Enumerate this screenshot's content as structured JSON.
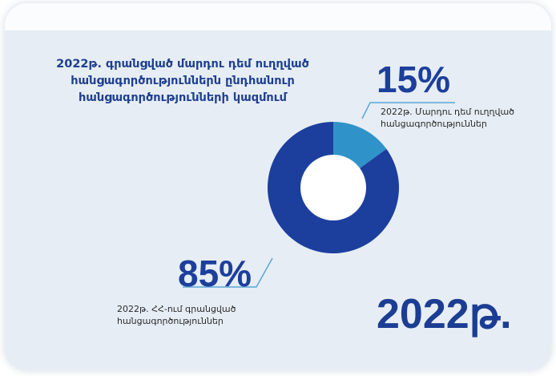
{
  "chart_data": {
    "type": "pie",
    "title": "2022թ. գրանցված մարդու դեմ ուղղված հանցագործություններն ընդհանուր հանցագործությունների կազմում",
    "slices": [
      {
        "label_line1": "2022թ. Մարդու դեմ ուղղված",
        "label_line2": "հանցագործություններ",
        "value": 15,
        "value_text": "15%",
        "color": "#2f93c9"
      },
      {
        "label_line1": "2022թ. ՀՀ-ում գրանցված",
        "label_line2": "հանցագործություններ",
        "value": 85,
        "value_text": "85%",
        "color": "#1c3f9e"
      }
    ],
    "year_text": "2022թ."
  },
  "title_lines": [
    "2022թ. գրանցված մարդու դեմ ուղղված",
    "հանցագործություններն ընդհանուր",
    "հանցագործությունների կազմում"
  ]
}
